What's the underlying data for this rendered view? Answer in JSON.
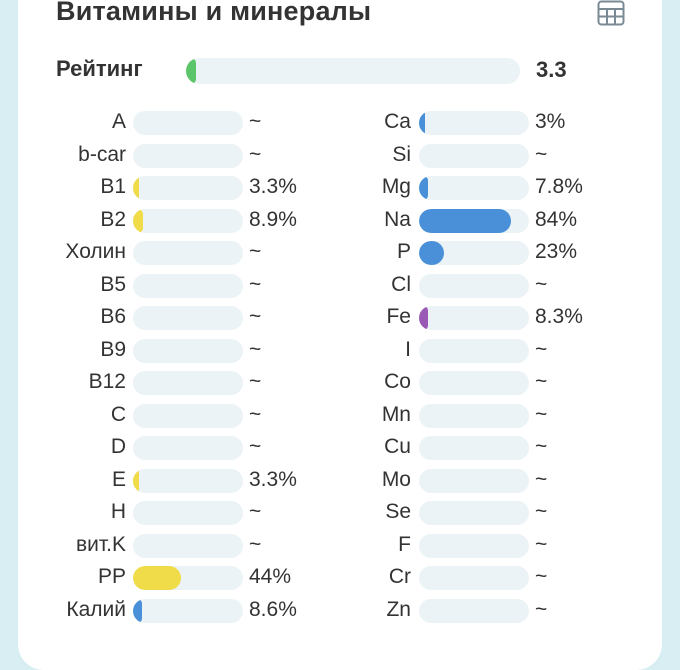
{
  "header": {
    "title": "Витамины и минералы",
    "table_icon": "table-grid-icon"
  },
  "rating": {
    "label": "Рейтинг",
    "value": "3.3",
    "fraction": 0.02,
    "color": "#5cc56a"
  },
  "colors": {
    "track": "#ebf3f6",
    "vitamin_fill": "#f0dc48",
    "mineral_fill": "#4a90d9",
    "iron_fill": "#9b59b6"
  },
  "vitamins": [
    {
      "label": "A",
      "value": "~",
      "percent": 0
    },
    {
      "label": "b-car",
      "value": "~",
      "percent": 0
    },
    {
      "label": "B1",
      "value": "3.3%",
      "percent": 3.3
    },
    {
      "label": "B2",
      "value": "8.9%",
      "percent": 8.9
    },
    {
      "label": "Холин",
      "value": "~",
      "percent": 0
    },
    {
      "label": "B5",
      "value": "~",
      "percent": 0
    },
    {
      "label": "B6",
      "value": "~",
      "percent": 0
    },
    {
      "label": "B9",
      "value": "~",
      "percent": 0
    },
    {
      "label": "B12",
      "value": "~",
      "percent": 0
    },
    {
      "label": "C",
      "value": "~",
      "percent": 0
    },
    {
      "label": "D",
      "value": "~",
      "percent": 0
    },
    {
      "label": "E",
      "value": "3.3%",
      "percent": 3.3
    },
    {
      "label": "H",
      "value": "~",
      "percent": 0
    },
    {
      "label": "вит.K",
      "value": "~",
      "percent": 0
    },
    {
      "label": "PP",
      "value": "44%",
      "percent": 44
    },
    {
      "label": "Калий",
      "value": "8.6%",
      "percent": 8.6,
      "color": "#4a90d9"
    }
  ],
  "minerals": [
    {
      "label": "Ca",
      "value": "3%",
      "percent": 3
    },
    {
      "label": "Si",
      "value": "~",
      "percent": 0
    },
    {
      "label": "Mg",
      "value": "7.8%",
      "percent": 7.8
    },
    {
      "label": "Na",
      "value": "84%",
      "percent": 84
    },
    {
      "label": "P",
      "value": "23%",
      "percent": 23
    },
    {
      "label": "Cl",
      "value": "~",
      "percent": 0
    },
    {
      "label": "Fe",
      "value": "8.3%",
      "percent": 8.3,
      "color": "#9b59b6"
    },
    {
      "label": "I",
      "value": "~",
      "percent": 0
    },
    {
      "label": "Co",
      "value": "~",
      "percent": 0
    },
    {
      "label": "Mn",
      "value": "~",
      "percent": 0
    },
    {
      "label": "Cu",
      "value": "~",
      "percent": 0
    },
    {
      "label": "Mo",
      "value": "~",
      "percent": 0
    },
    {
      "label": "Se",
      "value": "~",
      "percent": 0
    },
    {
      "label": "F",
      "value": "~",
      "percent": 0
    },
    {
      "label": "Cr",
      "value": "~",
      "percent": 0
    },
    {
      "label": "Zn",
      "value": "~",
      "percent": 0
    }
  ]
}
